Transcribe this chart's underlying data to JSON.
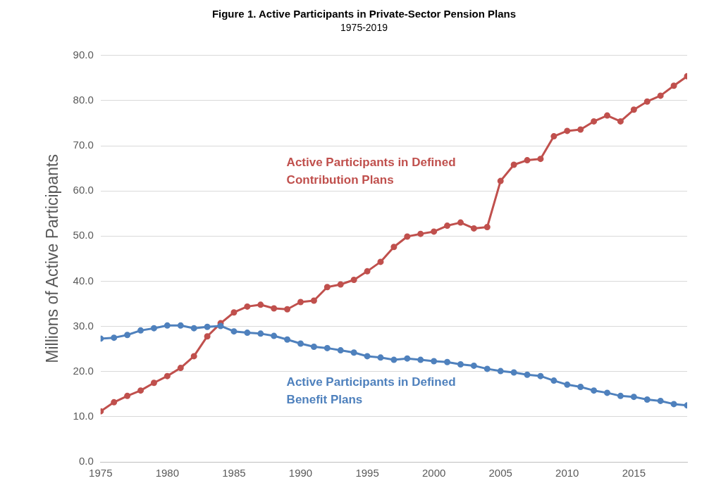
{
  "chart_data": {
    "type": "line",
    "title": "Figure 1. Active Participants in Private-Sector Pension Plans",
    "subtitle": "1975-2019",
    "ylabel": "Millions of Active Participants",
    "x": [
      1975,
      1976,
      1977,
      1978,
      1979,
      1980,
      1981,
      1982,
      1983,
      1984,
      1985,
      1986,
      1987,
      1988,
      1989,
      1990,
      1991,
      1992,
      1993,
      1994,
      1995,
      1996,
      1997,
      1998,
      1999,
      2000,
      2001,
      2002,
      2003,
      2004,
      2005,
      2006,
      2007,
      2008,
      2009,
      2010,
      2011,
      2012,
      2013,
      2014,
      2015,
      2016,
      2017,
      2018,
      2019
    ],
    "series": [
      {
        "name": "Active Participants in Defined Contribution Plans",
        "color": "#c0504d",
        "values": [
          11.2,
          13.2,
          14.6,
          15.8,
          17.5,
          19.0,
          20.8,
          23.4,
          27.8,
          30.7,
          33.1,
          34.4,
          34.8,
          34.0,
          33.8,
          35.4,
          35.7,
          38.7,
          39.3,
          40.3,
          42.2,
          44.3,
          47.6,
          49.9,
          50.5,
          51.0,
          52.3,
          53.0,
          51.7,
          52.0,
          62.2,
          65.8,
          66.8,
          67.1,
          72.1,
          73.3,
          73.6,
          75.4,
          76.7,
          75.4,
          78.0,
          79.8,
          81.1,
          83.3,
          85.4
        ]
      },
      {
        "name": "Active Participants in Defined Benefit Plans",
        "color": "#4f81bd",
        "values": [
          27.3,
          27.5,
          28.1,
          29.1,
          29.6,
          30.2,
          30.2,
          29.6,
          29.9,
          30.1,
          28.9,
          28.6,
          28.4,
          27.9,
          27.1,
          26.2,
          25.5,
          25.2,
          24.7,
          24.2,
          23.4,
          23.1,
          22.6,
          22.9,
          22.6,
          22.3,
          22.1,
          21.6,
          21.3,
          20.6,
          20.1,
          19.8,
          19.3,
          19.0,
          18.0,
          17.1,
          16.6,
          15.8,
          15.3,
          14.6,
          14.4,
          13.8,
          13.5,
          12.8,
          12.5
        ]
      }
    ],
    "xlim": [
      1975,
      2019
    ],
    "xticks": [
      1975,
      1980,
      1985,
      1990,
      1995,
      2000,
      2005,
      2010,
      2015
    ],
    "ylim": [
      0,
      90
    ],
    "yticks": [
      {
        "value": 0,
        "label": "0.0"
      },
      {
        "value": 10,
        "label": "10.0"
      },
      {
        "value": 20,
        "label": "20.0"
      },
      {
        "value": 30,
        "label": "30.0"
      },
      {
        "value": 40,
        "label": "40.0"
      },
      {
        "value": 50,
        "label": "50.0"
      },
      {
        "value": 60,
        "label": "60.0"
      },
      {
        "value": 70,
        "label": "70.0"
      },
      {
        "value": 80,
        "label": "80.0"
      },
      {
        "value": 90,
        "label": "90.0"
      }
    ],
    "grid": "y",
    "legend": false,
    "marker": "circle",
    "line_style": "solid"
  }
}
